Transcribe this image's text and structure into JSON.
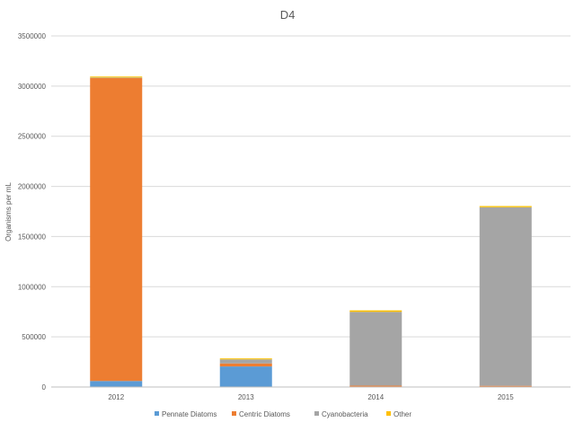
{
  "chart_data": {
    "type": "bar",
    "stacked": true,
    "title": "D4",
    "xlabel": "",
    "ylabel": "Organisms per mL",
    "ylim": [
      0,
      3500000
    ],
    "yticks": [
      0,
      500000,
      1000000,
      1500000,
      2000000,
      2500000,
      3000000,
      3500000
    ],
    "yticks_text": [
      "0",
      "500000",
      "1000000",
      "1500000",
      "2000000",
      "2500000",
      "3000000",
      "3500000"
    ],
    "grid": true,
    "legend_position": "bottom",
    "categories": [
      "2012",
      "2013",
      "2014",
      "2015"
    ],
    "series": [
      {
        "name": "Pennate Diatoms",
        "color": "#5b9bd5",
        "values": [
          60000,
          205000,
          2000,
          2000
        ]
      },
      {
        "name": "Centric Diatoms",
        "color": "#ed7d31",
        "values": [
          3020000,
          30000,
          12000,
          10000
        ]
      },
      {
        "name": "Cyanobacteria",
        "color": "#a5a5a5",
        "values": [
          5000,
          40000,
          735000,
          1780000
        ]
      },
      {
        "name": "Other",
        "color": "#ffc000",
        "values": [
          10000,
          10000,
          15000,
          12000
        ]
      }
    ]
  }
}
